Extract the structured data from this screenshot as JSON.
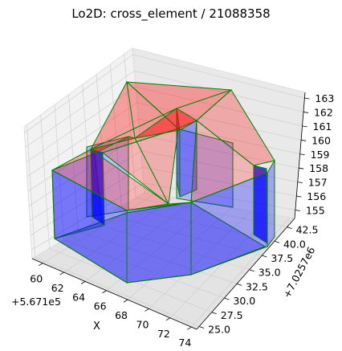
{
  "chart_data": {
    "type": "3d-polyhedron",
    "title": "Lo2D: cross_element / 21088358",
    "xlabel": "X",
    "ylabel": "Y",
    "zlabel": "",
    "x_offset_text": "+5.671e5",
    "y_offset_text": "+7.0257e6",
    "x_ticks": [
      "60",
      "62",
      "64",
      "66",
      "68",
      "70",
      "72",
      "74"
    ],
    "y_ticks": [
      "25.0",
      "27.5",
      "30.0",
      "32.5",
      "35.0",
      "37.5",
      "40.0",
      "42.5"
    ],
    "z_ticks": [
      "155",
      "156",
      "157",
      "158",
      "159",
      "160",
      "161",
      "162",
      "163"
    ],
    "xlim": [
      59,
      74.5
    ],
    "ylim": [
      24.5,
      44
    ],
    "zlim": [
      154.4,
      163.4
    ],
    "faces": {
      "walls_color": "#0000ff",
      "roof_color": "#ff0000",
      "edge_color": "#008000"
    },
    "outline_footprint": [
      [
        60.4,
        35.2
      ],
      [
        62.0,
        35.2
      ],
      [
        62.0,
        42.8
      ],
      [
        66.8,
        42.8
      ],
      [
        66.8,
        35.2
      ],
      [
        70.0,
        35.2
      ],
      [
        70.0,
        33.6
      ],
      [
        66.8,
        33.6
      ],
      [
        66.8,
        24.6
      ],
      [
        62.0,
        24.6
      ],
      [
        62.0,
        33.6
      ],
      [
        60.4,
        33.6
      ]
    ]
  }
}
